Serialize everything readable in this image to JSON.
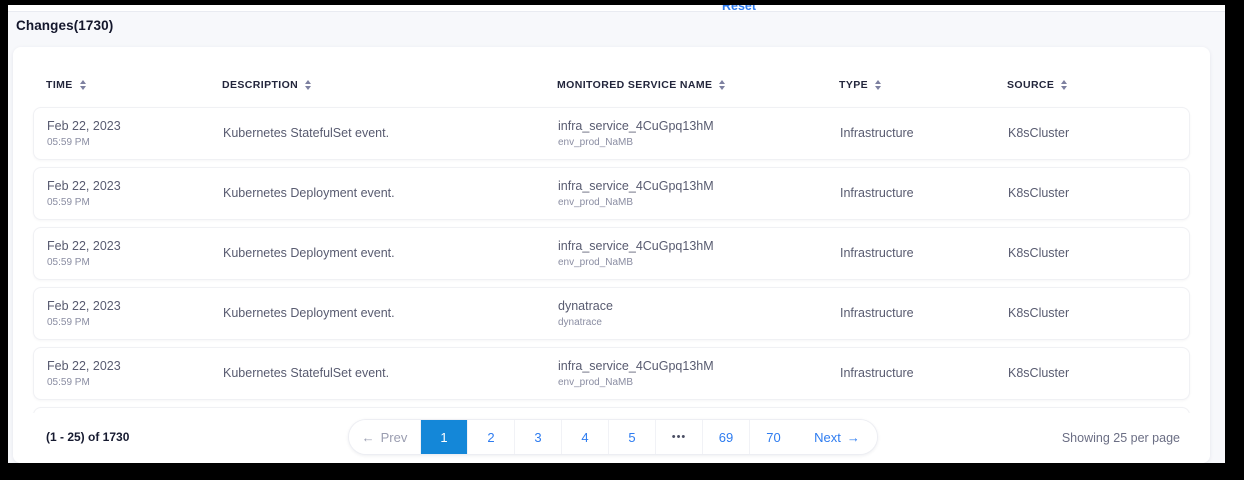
{
  "header": {
    "title": "Changes(1730)",
    "reset_label": "Reset"
  },
  "table": {
    "columns": [
      {
        "label": "TIME"
      },
      {
        "label": "DESCRIPTION"
      },
      {
        "label": "MONITORED SERVICE NAME"
      },
      {
        "label": "TYPE"
      },
      {
        "label": "SOURCE"
      }
    ],
    "rows": [
      {
        "date": "Feb 22, 2023",
        "time": "05:59 PM",
        "description": "Kubernetes StatefulSet event.",
        "service": "infra_service_4CuGpq13hM",
        "service_sub": "env_prod_NaMB",
        "type": "Infrastructure",
        "source": "K8sCluster"
      },
      {
        "date": "Feb 22, 2023",
        "time": "05:59 PM",
        "description": "Kubernetes Deployment event.",
        "service": "infra_service_4CuGpq13hM",
        "service_sub": "env_prod_NaMB",
        "type": "Infrastructure",
        "source": "K8sCluster"
      },
      {
        "date": "Feb 22, 2023",
        "time": "05:59 PM",
        "description": "Kubernetes Deployment event.",
        "service": "infra_service_4CuGpq13hM",
        "service_sub": "env_prod_NaMB",
        "type": "Infrastructure",
        "source": "K8sCluster"
      },
      {
        "date": "Feb 22, 2023",
        "time": "05:59 PM",
        "description": "Kubernetes Deployment event.",
        "service": "dynatrace",
        "service_sub": "dynatrace",
        "type": "Infrastructure",
        "source": "K8sCluster"
      },
      {
        "date": "Feb 22, 2023",
        "time": "05:59 PM",
        "description": "Kubernetes StatefulSet event.",
        "service": "infra_service_4CuGpq13hM",
        "service_sub": "env_prod_NaMB",
        "type": "Infrastructure",
        "source": "K8sCluster"
      }
    ]
  },
  "pagination": {
    "range_label": "(1 - 25) of 1730",
    "prev_arrow": "←",
    "prev_label": "Prev",
    "pages": [
      "1",
      "2",
      "3",
      "4",
      "5",
      "•••",
      "69",
      "70"
    ],
    "active_page": "1",
    "next_label": "Next",
    "next_arrow": "→",
    "per_page_label": "Showing 25 per page"
  },
  "colors": {
    "accent": "#1487d8",
    "link_blue": "#2e7cf0"
  }
}
